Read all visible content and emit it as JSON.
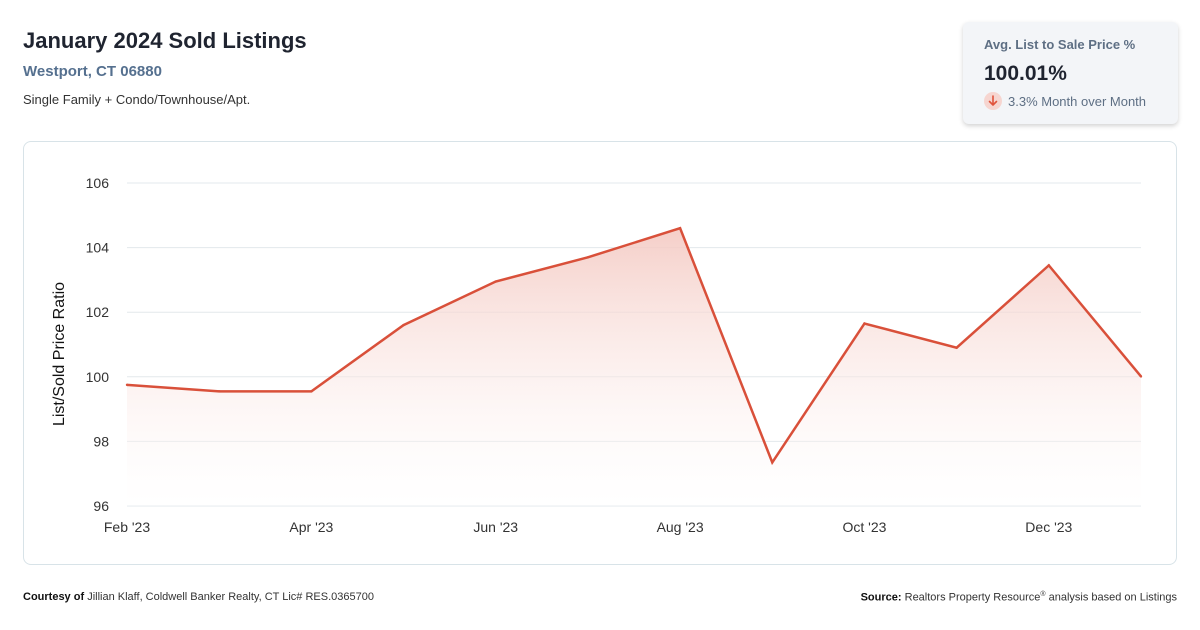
{
  "header": {
    "title": "January 2024 Sold Listings",
    "location": "Westport, CT 06880",
    "subtitle": "Single Family + Condo/Townhouse/Apt."
  },
  "kpi": {
    "label": "Avg. List to Sale Price %",
    "value": "100.01%",
    "change": "3.3% Month over Month",
    "direction_icon": "arrow-down-icon",
    "change_color": "#e0533c"
  },
  "colors": {
    "line": "#d9503a",
    "fill_top": "#f4c9c2",
    "grid": "#e3e8ec"
  },
  "chart_data": {
    "type": "area",
    "x": [
      "Feb '23",
      "Mar '23",
      "Apr '23",
      "May '23",
      "Jun '23",
      "Jul '23",
      "Aug '23",
      "Sep '23",
      "Oct '23",
      "Nov '23",
      "Dec '23",
      "Jan '24"
    ],
    "values": [
      99.75,
      99.55,
      99.55,
      101.6,
      102.95,
      103.7,
      104.6,
      97.35,
      101.65,
      100.9,
      103.45,
      100.01
    ],
    "xticks": [
      "Feb '23",
      "Apr '23",
      "Jun '23",
      "Aug '23",
      "Oct '23",
      "Dec '23"
    ],
    "yticks": [
      "96",
      "98",
      "100",
      "102",
      "104",
      "106"
    ],
    "ylim": [
      96,
      106
    ],
    "ylabel": "List/Sold Price Ratio",
    "xlabel": "",
    "grid": true
  },
  "footer": {
    "courtesy_label": "Courtesy of",
    "courtesy_text": "Jillian Klaff, Coldwell Banker Realty, CT Lic# RES.0365700",
    "source_label": "Source:",
    "source_text_1": "Realtors Property Resource",
    "source_sup": "®",
    "source_text_2": " analysis based on Listings"
  }
}
